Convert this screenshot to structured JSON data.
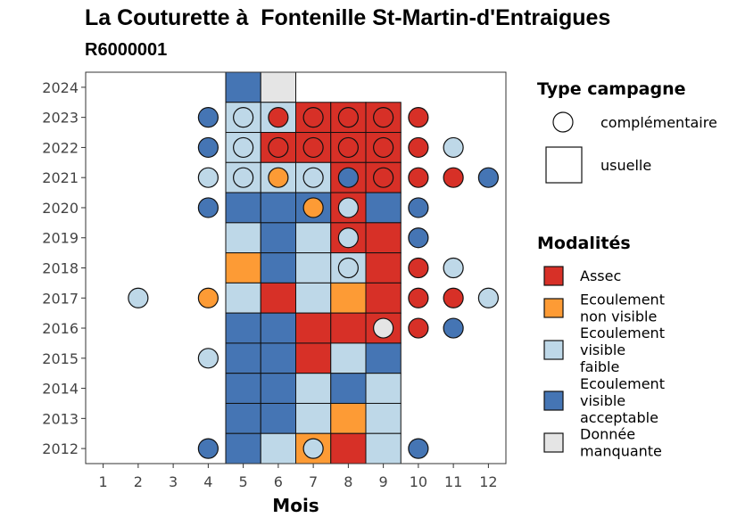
{
  "title": "La Couturette à  Fontenille St-Martin-d'Entraigues",
  "subtitle": "R6000001",
  "chart_data": {
    "type": "heatmap",
    "xlabel": "Mois",
    "ylabel": "",
    "x_ticks": [
      "1",
      "2",
      "3",
      "4",
      "5",
      "6",
      "7",
      "8",
      "9",
      "10",
      "11",
      "12"
    ],
    "y_ticks": [
      "2012",
      "2013",
      "2014",
      "2015",
      "2016",
      "2017",
      "2018",
      "2019",
      "2020",
      "2021",
      "2022",
      "2023",
      "2024"
    ],
    "xlim": [
      0.5,
      12.5
    ],
    "ylim": [
      2011.5,
      2024.5
    ],
    "colors": {
      "assec": "#d73027",
      "ecoulement_non_visible": "#fd9b35",
      "ecoulement_visible_faible": "#bed8e8",
      "ecoulement_visible_acceptable": "#4575b4",
      "donnee_manquante": "#e5e5e5"
    },
    "legend_shape": {
      "title": "Type campagne",
      "entries": [
        {
          "key": "complementaire",
          "label": "complémentaire",
          "shape": "circle"
        },
        {
          "key": "usuelle",
          "label": "usuelle",
          "shape": "square"
        }
      ]
    },
    "legend_modalites": {
      "title": "Modalités",
      "entries": [
        {
          "key": "assec",
          "lines": [
            "Assec"
          ]
        },
        {
          "key": "ecoulement_non_visible",
          "lines": [
            "Ecoulement",
            "non visible"
          ]
        },
        {
          "key": "ecoulement_visible_faible",
          "lines": [
            "Ecoulement",
            "visible",
            "faible"
          ]
        },
        {
          "key": "ecoulement_visible_acceptable",
          "lines": [
            "Ecoulement",
            "visible",
            "acceptable"
          ]
        },
        {
          "key": "donnee_manquante",
          "lines": [
            "Donnée",
            "manquante"
          ]
        }
      ]
    },
    "usuelle": [
      [
        5,
        2024,
        "ecoulement_visible_acceptable"
      ],
      [
        6,
        2024,
        "donnee_manquante"
      ],
      [
        5,
        2023,
        "ecoulement_visible_faible"
      ],
      [
        6,
        2023,
        "ecoulement_visible_faible"
      ],
      [
        7,
        2023,
        "assec"
      ],
      [
        8,
        2023,
        "assec"
      ],
      [
        9,
        2023,
        "assec"
      ],
      [
        5,
        2022,
        "ecoulement_visible_faible"
      ],
      [
        6,
        2022,
        "assec"
      ],
      [
        7,
        2022,
        "assec"
      ],
      [
        8,
        2022,
        "assec"
      ],
      [
        9,
        2022,
        "assec"
      ],
      [
        5,
        2021,
        "ecoulement_visible_faible"
      ],
      [
        6,
        2021,
        "ecoulement_visible_faible"
      ],
      [
        7,
        2021,
        "ecoulement_visible_faible"
      ],
      [
        8,
        2021,
        "assec"
      ],
      [
        9,
        2021,
        "assec"
      ],
      [
        5,
        2020,
        "ecoulement_visible_acceptable"
      ],
      [
        6,
        2020,
        "ecoulement_visible_acceptable"
      ],
      [
        7,
        2020,
        "ecoulement_visible_acceptable"
      ],
      [
        8,
        2020,
        "assec"
      ],
      [
        9,
        2020,
        "ecoulement_visible_acceptable"
      ],
      [
        5,
        2019,
        "ecoulement_visible_faible"
      ],
      [
        6,
        2019,
        "ecoulement_visible_acceptable"
      ],
      [
        7,
        2019,
        "ecoulement_visible_faible"
      ],
      [
        8,
        2019,
        "assec"
      ],
      [
        9,
        2019,
        "assec"
      ],
      [
        5,
        2018,
        "ecoulement_non_visible"
      ],
      [
        6,
        2018,
        "ecoulement_visible_acceptable"
      ],
      [
        7,
        2018,
        "ecoulement_visible_faible"
      ],
      [
        8,
        2018,
        "ecoulement_visible_faible"
      ],
      [
        9,
        2018,
        "assec"
      ],
      [
        5,
        2017,
        "ecoulement_visible_faible"
      ],
      [
        6,
        2017,
        "assec"
      ],
      [
        7,
        2017,
        "ecoulement_visible_faible"
      ],
      [
        8,
        2017,
        "ecoulement_non_visible"
      ],
      [
        9,
        2017,
        "assec"
      ],
      [
        5,
        2016,
        "ecoulement_visible_acceptable"
      ],
      [
        6,
        2016,
        "ecoulement_visible_acceptable"
      ],
      [
        7,
        2016,
        "assec"
      ],
      [
        8,
        2016,
        "assec"
      ],
      [
        9,
        2016,
        "assec"
      ],
      [
        5,
        2015,
        "ecoulement_visible_acceptable"
      ],
      [
        6,
        2015,
        "ecoulement_visible_acceptable"
      ],
      [
        7,
        2015,
        "assec"
      ],
      [
        8,
        2015,
        "ecoulement_visible_faible"
      ],
      [
        9,
        2015,
        "ecoulement_visible_acceptable"
      ],
      [
        5,
        2014,
        "ecoulement_visible_acceptable"
      ],
      [
        6,
        2014,
        "ecoulement_visible_acceptable"
      ],
      [
        7,
        2014,
        "ecoulement_visible_faible"
      ],
      [
        8,
        2014,
        "ecoulement_visible_acceptable"
      ],
      [
        9,
        2014,
        "ecoulement_visible_faible"
      ],
      [
        5,
        2013,
        "ecoulement_visible_acceptable"
      ],
      [
        6,
        2013,
        "ecoulement_visible_acceptable"
      ],
      [
        7,
        2013,
        "ecoulement_visible_faible"
      ],
      [
        8,
        2013,
        "ecoulement_non_visible"
      ],
      [
        9,
        2013,
        "ecoulement_visible_faible"
      ],
      [
        5,
        2012,
        "ecoulement_visible_acceptable"
      ],
      [
        6,
        2012,
        "ecoulement_visible_faible"
      ],
      [
        7,
        2012,
        "ecoulement_non_visible"
      ],
      [
        8,
        2012,
        "assec"
      ],
      [
        9,
        2012,
        "ecoulement_visible_faible"
      ]
    ],
    "complementaire": [
      [
        4,
        2023,
        "ecoulement_visible_acceptable"
      ],
      [
        5,
        2023,
        "ecoulement_visible_faible"
      ],
      [
        6,
        2023,
        "assec"
      ],
      [
        7,
        2023,
        "assec"
      ],
      [
        8,
        2023,
        "assec"
      ],
      [
        9,
        2023,
        "assec"
      ],
      [
        10,
        2023,
        "assec"
      ],
      [
        4,
        2022,
        "ecoulement_visible_acceptable"
      ],
      [
        5,
        2022,
        "ecoulement_visible_faible"
      ],
      [
        6,
        2022,
        "assec"
      ],
      [
        7,
        2022,
        "assec"
      ],
      [
        8,
        2022,
        "assec"
      ],
      [
        9,
        2022,
        "assec"
      ],
      [
        10,
        2022,
        "assec"
      ],
      [
        11,
        2022,
        "ecoulement_visible_faible"
      ],
      [
        4,
        2021,
        "ecoulement_visible_faible"
      ],
      [
        5,
        2021,
        "ecoulement_visible_faible"
      ],
      [
        6,
        2021,
        "ecoulement_non_visible"
      ],
      [
        7,
        2021,
        "ecoulement_visible_faible"
      ],
      [
        8,
        2021,
        "ecoulement_visible_acceptable"
      ],
      [
        9,
        2021,
        "assec"
      ],
      [
        10,
        2021,
        "assec"
      ],
      [
        11,
        2021,
        "assec"
      ],
      [
        12,
        2021,
        "ecoulement_visible_acceptable"
      ],
      [
        4,
        2020,
        "ecoulement_visible_acceptable"
      ],
      [
        7,
        2020,
        "ecoulement_non_visible"
      ],
      [
        8,
        2020,
        "ecoulement_visible_faible"
      ],
      [
        10,
        2020,
        "ecoulement_visible_acceptable"
      ],
      [
        8,
        2019,
        "ecoulement_visible_faible"
      ],
      [
        10,
        2019,
        "ecoulement_visible_acceptable"
      ],
      [
        8,
        2018,
        "ecoulement_visible_faible"
      ],
      [
        10,
        2018,
        "assec"
      ],
      [
        11,
        2018,
        "ecoulement_visible_faible"
      ],
      [
        2,
        2017,
        "ecoulement_visible_faible"
      ],
      [
        4,
        2017,
        "ecoulement_non_visible"
      ],
      [
        10,
        2017,
        "assec"
      ],
      [
        11,
        2017,
        "assec"
      ],
      [
        12,
        2017,
        "ecoulement_visible_faible"
      ],
      [
        9,
        2016,
        "donnee_manquante"
      ],
      [
        10,
        2016,
        "assec"
      ],
      [
        11,
        2016,
        "ecoulement_visible_acceptable"
      ],
      [
        4,
        2015,
        "ecoulement_visible_faible"
      ],
      [
        4,
        2012,
        "ecoulement_visible_acceptable"
      ],
      [
        7,
        2012,
        "ecoulement_visible_faible"
      ],
      [
        10,
        2012,
        "ecoulement_visible_acceptable"
      ]
    ]
  }
}
